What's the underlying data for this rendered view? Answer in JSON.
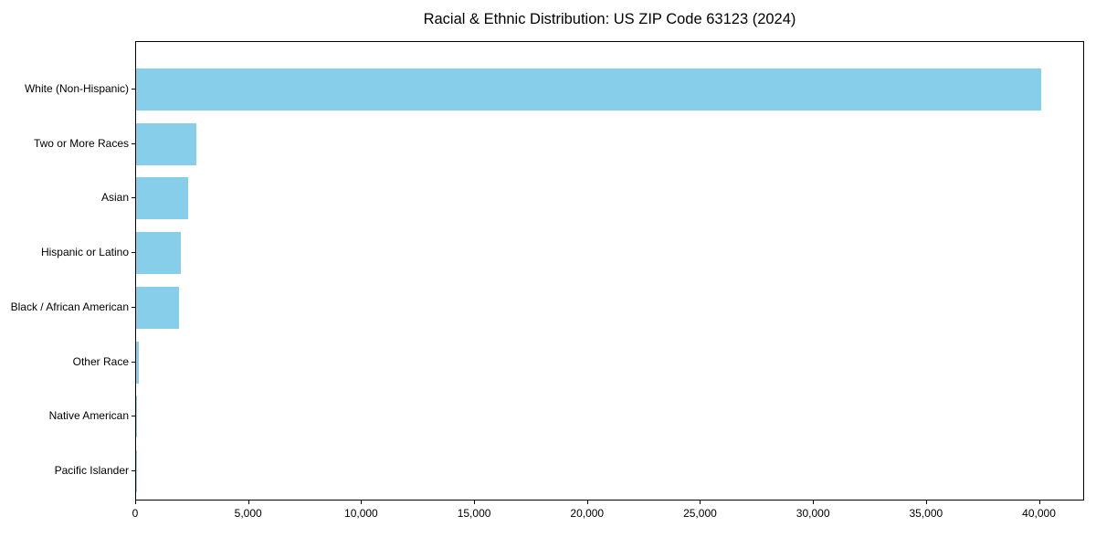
{
  "title": "Racial & Ethnic Distribution: US ZIP Code 63123 (2024)",
  "chart_data": {
    "type": "bar",
    "orientation": "horizontal",
    "title": "Racial & Ethnic Distribution: US ZIP Code 63123 (2024)",
    "xlabel": "",
    "ylabel": "",
    "categories": [
      "White (Non-Hispanic)",
      "Two or More Races",
      "Asian",
      "Hispanic or Latino",
      "Black / African American",
      "Other Race",
      "Native American",
      "Pacific Islander"
    ],
    "values": [
      40050,
      2650,
      2290,
      2000,
      1890,
      130,
      40,
      10
    ],
    "xlim": [
      0,
      42000
    ],
    "xticks": [
      0,
      5000,
      10000,
      15000,
      20000,
      25000,
      30000,
      35000,
      40000
    ],
    "xtick_labels": [
      "0",
      "5,000",
      "10,000",
      "15,000",
      "20,000",
      "25,000",
      "30,000",
      "35,000",
      "40,000"
    ],
    "grid": false,
    "legend": null,
    "bar_color": "#87CEEB",
    "background_color": "#ffffff",
    "axis_color": "#000000",
    "text_color": "#000000"
  }
}
